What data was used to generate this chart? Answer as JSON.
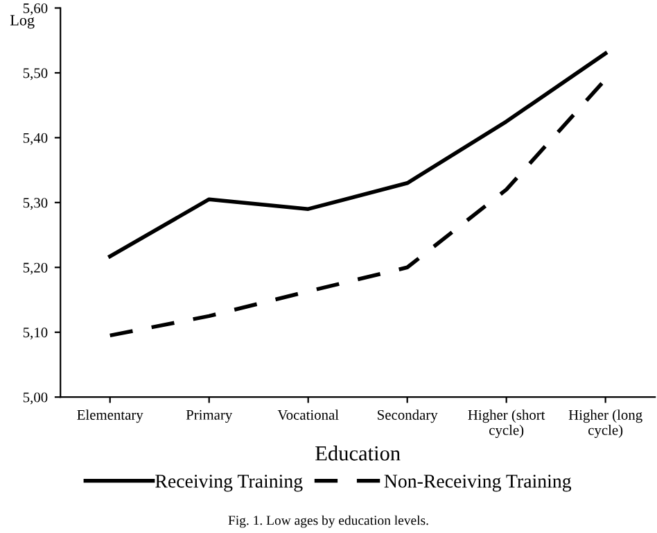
{
  "chart_data": {
    "type": "line",
    "ylabel": "Log",
    "xlabel": "Education",
    "categories": [
      "Elementary",
      "Primary",
      "Vocational",
      "Secondary",
      "Higher (short\ncycle)",
      "Higher (long\ncycle)"
    ],
    "series": [
      {
        "name": "Receiving Training",
        "color": "#000000",
        "line_style": "solid",
        "values": [
          5.217,
          5.305,
          5.29,
          5.33,
          5.425,
          5.53
        ]
      },
      {
        "name": "Non-Receiving Training",
        "color": "#000000",
        "line_style": "dashed",
        "values": [
          5.095,
          5.125,
          5.163,
          5.2,
          5.32,
          5.49
        ]
      }
    ],
    "ylim": [
      5.0,
      5.6
    ],
    "yticks": [
      {
        "value": 5.0,
        "label": "5,00"
      },
      {
        "value": 5.1,
        "label": "5,10"
      },
      {
        "value": 5.2,
        "label": "5,20"
      },
      {
        "value": 5.3,
        "label": "5,30"
      },
      {
        "value": 5.4,
        "label": "5,40"
      },
      {
        "value": 5.5,
        "label": "5,50"
      },
      {
        "value": 5.6,
        "label": "5,60"
      }
    ],
    "grid": false,
    "legend": "bottom",
    "marker": "none",
    "annotations": [
      "Fig. 1. Low ages by education levels."
    ]
  }
}
